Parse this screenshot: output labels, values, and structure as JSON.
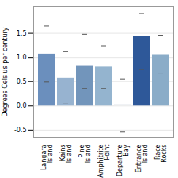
{
  "chart_data": {
    "type": "bar",
    "categories": [
      "Langara\nIsland",
      "Kains\nIsland",
      "Pine\nIsland",
      "Amphitrite\nPoint",
      "Departure\nBay",
      "Entrance\nIsland",
      "Race\nRocks"
    ],
    "values": [
      1.07,
      0.58,
      0.83,
      0.8,
      0.03,
      1.43,
      1.06
    ],
    "colors": [
      "#6b8fbd",
      "#97b3d0",
      "#7295bb",
      "#94b4cf",
      "#f0f2f5",
      "#2e5899",
      "#8aacc8"
    ],
    "error_lower": [
      0.58,
      0.54,
      0.47,
      0.44,
      0.57,
      0.68,
      0.4
    ],
    "error_upper": [
      0.58,
      0.54,
      0.65,
      0.44,
      0.52,
      0.48,
      0.4
    ],
    "ylabel": "Degrees Celsius per century",
    "ylim": [
      -0.65,
      2.05
    ],
    "yticks": [
      -0.5,
      {
        "value": 0,
        "label": "0.0"
      },
      0.5,
      {
        "value": 1,
        "label": "1.0"
      },
      1.5
    ],
    "grid": true
  }
}
